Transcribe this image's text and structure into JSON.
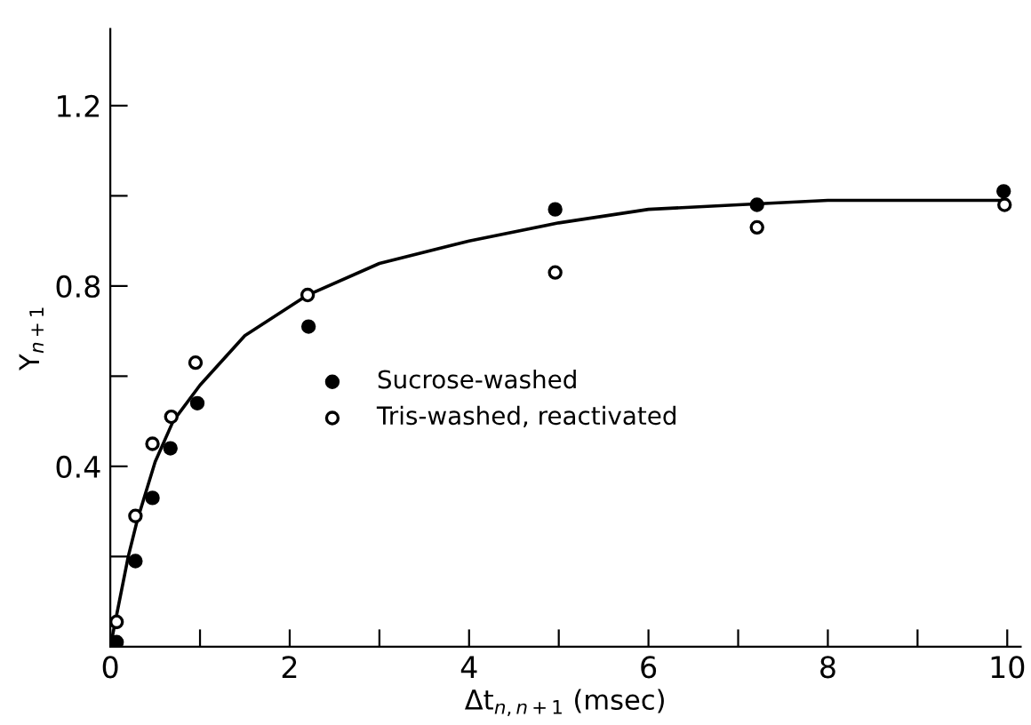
{
  "chart_data": {
    "type": "scatter",
    "xlabel": "Δt$_{n,n+1}$ (msec)",
    "ylabel": "Y$_{n+1}$",
    "xlim": [
      0,
      10.15
    ],
    "ylim": [
      0,
      1.37
    ],
    "xticks": [
      0,
      {
        "value": 1,
        "label": null
      },
      2,
      {
        "value": 3,
        "label": null
      },
      4,
      {
        "value": 5,
        "label": null
      },
      6,
      {
        "value": 7,
        "label": null
      },
      8,
      {
        "value": 9,
        "label": null
      },
      10
    ],
    "yticks": [
      {
        "value": 0.2,
        "label": null
      },
      {
        "value": 0.4,
        "label": "0.4"
      },
      {
        "value": 0.6,
        "label": null
      },
      {
        "value": 0.8,
        "label": "0.8"
      },
      {
        "value": 1.0,
        "label": null
      },
      {
        "value": 1.2,
        "label": "1.2"
      }
    ],
    "grid": false,
    "legend": "center",
    "series": [
      {
        "name": "Sucrose-washed",
        "color": "#000000",
        "marker": "circle",
        "x": [
          0.07,
          0.28,
          0.47,
          0.67,
          0.97,
          2.21,
          4.96,
          7.21,
          9.96
        ],
        "values": [
          0.01,
          0.19,
          0.33,
          0.44,
          0.54,
          0.71,
          0.97,
          0.98,
          1.01
        ]
      },
      {
        "name": "Tris-washed, reactivated",
        "color": "#ffffff",
        "marker": "circle",
        "x": [
          0.07,
          0.28,
          0.47,
          0.68,
          0.95,
          2.2,
          4.96,
          7.21,
          9.97
        ],
        "values": [
          0.055,
          0.29,
          0.45,
          0.51,
          0.63,
          0.78,
          0.83,
          0.93,
          0.98
        ]
      },
      {
        "type": "line",
        "color": "#000000",
        "marker": "none",
        "line_style": "solid",
        "x": [
          0,
          0.1,
          0.2,
          0.3,
          0.5,
          0.7,
          1.0,
          1.5,
          2.2,
          3,
          4,
          5,
          6,
          7,
          8,
          10
        ],
        "values": [
          0,
          0.1,
          0.2,
          0.28,
          0.41,
          0.5,
          0.58,
          0.69,
          0.78,
          0.85,
          0.9,
          0.94,
          0.97,
          0.98,
          0.99,
          0.99
        ]
      }
    ]
  }
}
